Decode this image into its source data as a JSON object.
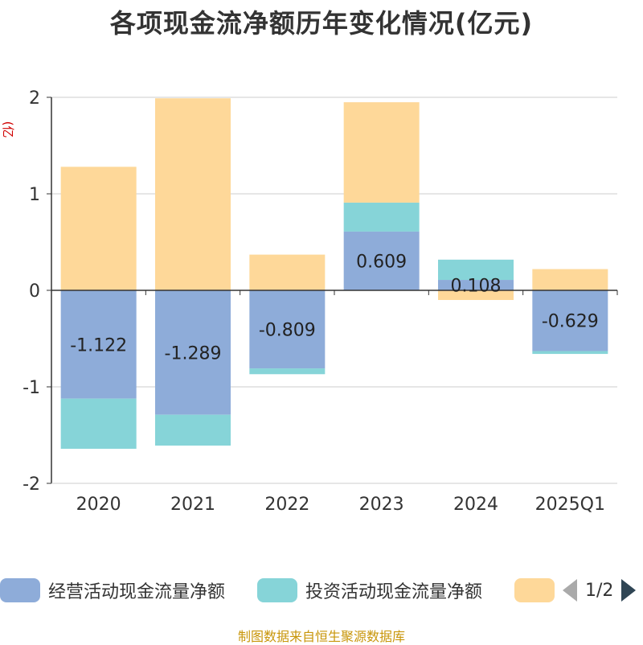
{
  "title": "各项现金流净额历年变化情况(亿元)",
  "source_note": "制图数据来自恒生聚源数据库",
  "pager": {
    "text": "1/2",
    "prev_icon": "triangle-left-icon",
    "next_icon": "triangle-right-icon"
  },
  "colors": {
    "operating": "#8eacd9",
    "investing": "#86d4d8",
    "financing": "#fed899",
    "axis": "#333333",
    "grid": "#cccccc"
  },
  "chart_data": {
    "type": "bar",
    "stacked": true,
    "title": "各项现金流净额历年变化情况(亿元)",
    "ylabel": "(亿元)",
    "xlabel": "",
    "ylim": [
      -2,
      2
    ],
    "yticks": [
      -2,
      -1,
      0,
      1,
      2
    ],
    "categories": [
      "2020",
      "2021",
      "2022",
      "2023",
      "2024",
      "2025Q1"
    ],
    "series": [
      {
        "name": "经营活动现金流量净额",
        "values": [
          -1.122,
          -1.289,
          -0.809,
          0.609,
          0.108,
          -0.629
        ],
        "labels": [
          "-1.122",
          "-1.289",
          "-0.809",
          "0.609",
          "0.108",
          "-0.629"
        ]
      },
      {
        "name": "投资活动现金流量净额",
        "values": [
          -0.52,
          -0.32,
          -0.06,
          0.3,
          0.21,
          -0.03
        ]
      },
      {
        "name": "",
        "values": [
          1.28,
          1.99,
          0.37,
          1.04,
          -0.1,
          0.22
        ]
      }
    ],
    "legend": {
      "position": "bottom",
      "entries": [
        "经营活动现金流量净额",
        "投资活动现金流量净额",
        ""
      ]
    }
  }
}
